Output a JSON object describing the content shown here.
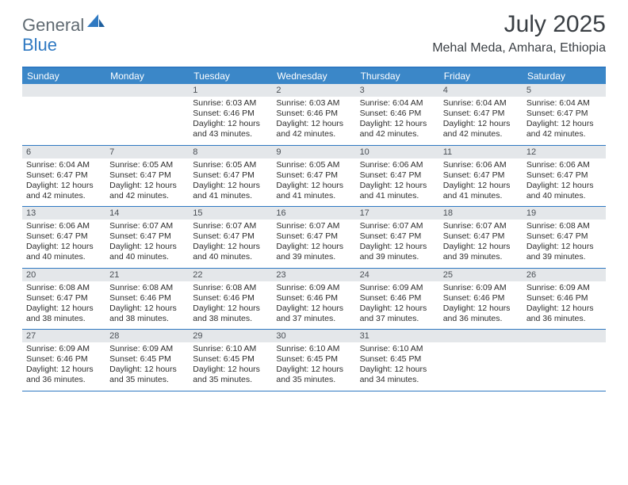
{
  "brand": {
    "general": "General",
    "blue": "Blue"
  },
  "title": "July 2025",
  "location": "Mehal Meda, Amhara, Ethiopia",
  "colors": {
    "header_bg": "#3b87c8",
    "rule": "#2f79c2",
    "daynum_bg": "#e4e7ea",
    "text": "#2d2d2d"
  },
  "weekdays": [
    "Sunday",
    "Monday",
    "Tuesday",
    "Wednesday",
    "Thursday",
    "Friday",
    "Saturday"
  ],
  "weeks": [
    [
      {
        "n": "",
        "rise": "",
        "set": "",
        "day": ""
      },
      {
        "n": "",
        "rise": "",
        "set": "",
        "day": ""
      },
      {
        "n": "1",
        "rise": "Sunrise: 6:03 AM",
        "set": "Sunset: 6:46 PM",
        "day": "Daylight: 12 hours and 43 minutes."
      },
      {
        "n": "2",
        "rise": "Sunrise: 6:03 AM",
        "set": "Sunset: 6:46 PM",
        "day": "Daylight: 12 hours and 42 minutes."
      },
      {
        "n": "3",
        "rise": "Sunrise: 6:04 AM",
        "set": "Sunset: 6:46 PM",
        "day": "Daylight: 12 hours and 42 minutes."
      },
      {
        "n": "4",
        "rise": "Sunrise: 6:04 AM",
        "set": "Sunset: 6:47 PM",
        "day": "Daylight: 12 hours and 42 minutes."
      },
      {
        "n": "5",
        "rise": "Sunrise: 6:04 AM",
        "set": "Sunset: 6:47 PM",
        "day": "Daylight: 12 hours and 42 minutes."
      }
    ],
    [
      {
        "n": "6",
        "rise": "Sunrise: 6:04 AM",
        "set": "Sunset: 6:47 PM",
        "day": "Daylight: 12 hours and 42 minutes."
      },
      {
        "n": "7",
        "rise": "Sunrise: 6:05 AM",
        "set": "Sunset: 6:47 PM",
        "day": "Daylight: 12 hours and 42 minutes."
      },
      {
        "n": "8",
        "rise": "Sunrise: 6:05 AM",
        "set": "Sunset: 6:47 PM",
        "day": "Daylight: 12 hours and 41 minutes."
      },
      {
        "n": "9",
        "rise": "Sunrise: 6:05 AM",
        "set": "Sunset: 6:47 PM",
        "day": "Daylight: 12 hours and 41 minutes."
      },
      {
        "n": "10",
        "rise": "Sunrise: 6:06 AM",
        "set": "Sunset: 6:47 PM",
        "day": "Daylight: 12 hours and 41 minutes."
      },
      {
        "n": "11",
        "rise": "Sunrise: 6:06 AM",
        "set": "Sunset: 6:47 PM",
        "day": "Daylight: 12 hours and 41 minutes."
      },
      {
        "n": "12",
        "rise": "Sunrise: 6:06 AM",
        "set": "Sunset: 6:47 PM",
        "day": "Daylight: 12 hours and 40 minutes."
      }
    ],
    [
      {
        "n": "13",
        "rise": "Sunrise: 6:06 AM",
        "set": "Sunset: 6:47 PM",
        "day": "Daylight: 12 hours and 40 minutes."
      },
      {
        "n": "14",
        "rise": "Sunrise: 6:07 AM",
        "set": "Sunset: 6:47 PM",
        "day": "Daylight: 12 hours and 40 minutes."
      },
      {
        "n": "15",
        "rise": "Sunrise: 6:07 AM",
        "set": "Sunset: 6:47 PM",
        "day": "Daylight: 12 hours and 40 minutes."
      },
      {
        "n": "16",
        "rise": "Sunrise: 6:07 AM",
        "set": "Sunset: 6:47 PM",
        "day": "Daylight: 12 hours and 39 minutes."
      },
      {
        "n": "17",
        "rise": "Sunrise: 6:07 AM",
        "set": "Sunset: 6:47 PM",
        "day": "Daylight: 12 hours and 39 minutes."
      },
      {
        "n": "18",
        "rise": "Sunrise: 6:07 AM",
        "set": "Sunset: 6:47 PM",
        "day": "Daylight: 12 hours and 39 minutes."
      },
      {
        "n": "19",
        "rise": "Sunrise: 6:08 AM",
        "set": "Sunset: 6:47 PM",
        "day": "Daylight: 12 hours and 39 minutes."
      }
    ],
    [
      {
        "n": "20",
        "rise": "Sunrise: 6:08 AM",
        "set": "Sunset: 6:47 PM",
        "day": "Daylight: 12 hours and 38 minutes."
      },
      {
        "n": "21",
        "rise": "Sunrise: 6:08 AM",
        "set": "Sunset: 6:46 PM",
        "day": "Daylight: 12 hours and 38 minutes."
      },
      {
        "n": "22",
        "rise": "Sunrise: 6:08 AM",
        "set": "Sunset: 6:46 PM",
        "day": "Daylight: 12 hours and 38 minutes."
      },
      {
        "n": "23",
        "rise": "Sunrise: 6:09 AM",
        "set": "Sunset: 6:46 PM",
        "day": "Daylight: 12 hours and 37 minutes."
      },
      {
        "n": "24",
        "rise": "Sunrise: 6:09 AM",
        "set": "Sunset: 6:46 PM",
        "day": "Daylight: 12 hours and 37 minutes."
      },
      {
        "n": "25",
        "rise": "Sunrise: 6:09 AM",
        "set": "Sunset: 6:46 PM",
        "day": "Daylight: 12 hours and 36 minutes."
      },
      {
        "n": "26",
        "rise": "Sunrise: 6:09 AM",
        "set": "Sunset: 6:46 PM",
        "day": "Daylight: 12 hours and 36 minutes."
      }
    ],
    [
      {
        "n": "27",
        "rise": "Sunrise: 6:09 AM",
        "set": "Sunset: 6:46 PM",
        "day": "Daylight: 12 hours and 36 minutes."
      },
      {
        "n": "28",
        "rise": "Sunrise: 6:09 AM",
        "set": "Sunset: 6:45 PM",
        "day": "Daylight: 12 hours and 35 minutes."
      },
      {
        "n": "29",
        "rise": "Sunrise: 6:10 AM",
        "set": "Sunset: 6:45 PM",
        "day": "Daylight: 12 hours and 35 minutes."
      },
      {
        "n": "30",
        "rise": "Sunrise: 6:10 AM",
        "set": "Sunset: 6:45 PM",
        "day": "Daylight: 12 hours and 35 minutes."
      },
      {
        "n": "31",
        "rise": "Sunrise: 6:10 AM",
        "set": "Sunset: 6:45 PM",
        "day": "Daylight: 12 hours and 34 minutes."
      },
      {
        "n": "",
        "rise": "",
        "set": "",
        "day": ""
      },
      {
        "n": "",
        "rise": "",
        "set": "",
        "day": ""
      }
    ]
  ]
}
